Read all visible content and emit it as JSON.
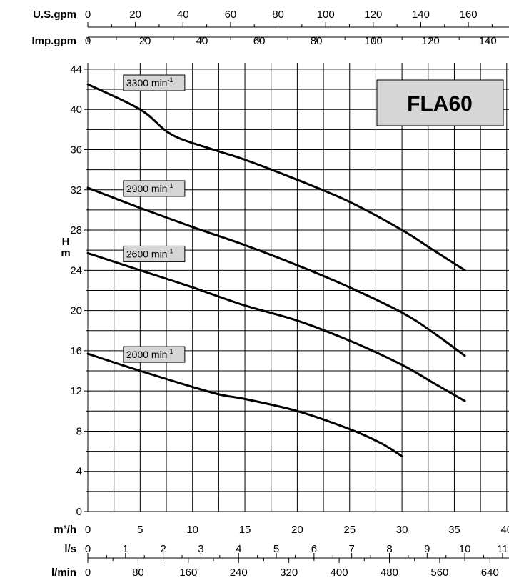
{
  "chart_data": {
    "type": "line",
    "title": "FLA60",
    "ylabel_left": "H",
    "ylabel_left_unit": "m",
    "ylim": [
      0,
      44
    ],
    "yticks": [
      0,
      4,
      8,
      12,
      16,
      20,
      24,
      28,
      32,
      36,
      40,
      44
    ],
    "xlim": [
      0,
      38
    ],
    "x_axes": [
      {
        "name": "U.S.gpm",
        "ticks": [
          "0",
          "20",
          "40",
          "60",
          "80",
          "100",
          "120",
          "140",
          "160"
        ],
        "factor": 4.403
      },
      {
        "name": "Imp.gpm",
        "ticks": [
          "0",
          "20",
          "40",
          "60",
          "80",
          "100",
          "120",
          "140"
        ],
        "factor": 3.666
      },
      {
        "name": "m³/h",
        "ticks": [
          "0",
          "5",
          "10",
          "15",
          "20",
          "25",
          "30",
          "35",
          "40"
        ],
        "factor": 1
      },
      {
        "name": "l/s",
        "ticks": [
          "0",
          "1",
          "2",
          "3",
          "4",
          "5",
          "6",
          "7",
          "8",
          "9",
          "10",
          "11"
        ],
        "factor": 0.27778
      },
      {
        "name": "l/min",
        "ticks": [
          "0",
          "80",
          "160",
          "240",
          "320",
          "400",
          "480",
          "560",
          "640"
        ],
        "factor": 16.667
      }
    ],
    "xlabel": "m³/h",
    "series": [
      {
        "name": "3300 min-1",
        "label_base": "3300 min",
        "label_sup": "-1",
        "x": [
          0,
          5,
          8,
          12,
          15,
          20,
          25,
          30,
          33,
          36
        ],
        "y": [
          42.5,
          40,
          37.5,
          36,
          35,
          33,
          30.8,
          28,
          26,
          24
        ]
      },
      {
        "name": "2900 min-1",
        "label_base": "2900 min",
        "label_sup": "-1",
        "x": [
          0,
          5,
          10,
          15,
          20,
          25,
          30,
          33,
          36
        ],
        "y": [
          32.2,
          30.2,
          28.3,
          26.5,
          24.5,
          22.3,
          19.8,
          17.8,
          15.5
        ]
      },
      {
        "name": "2600 min-1",
        "label_base": "2600 min",
        "label_sup": "-1",
        "x": [
          0,
          5,
          10,
          15,
          20,
          25,
          30,
          33,
          36
        ],
        "y": [
          25.7,
          24,
          22.3,
          20.5,
          19,
          17,
          14.6,
          12.8,
          11
        ]
      },
      {
        "name": "2000 min-1",
        "label_base": "2000 min",
        "label_sup": "-1",
        "x": [
          0,
          5,
          12,
          15,
          20,
          25,
          28,
          30
        ],
        "y": [
          15.7,
          14,
          11.8,
          11.2,
          10,
          8.2,
          6.8,
          5.5
        ]
      }
    ]
  }
}
